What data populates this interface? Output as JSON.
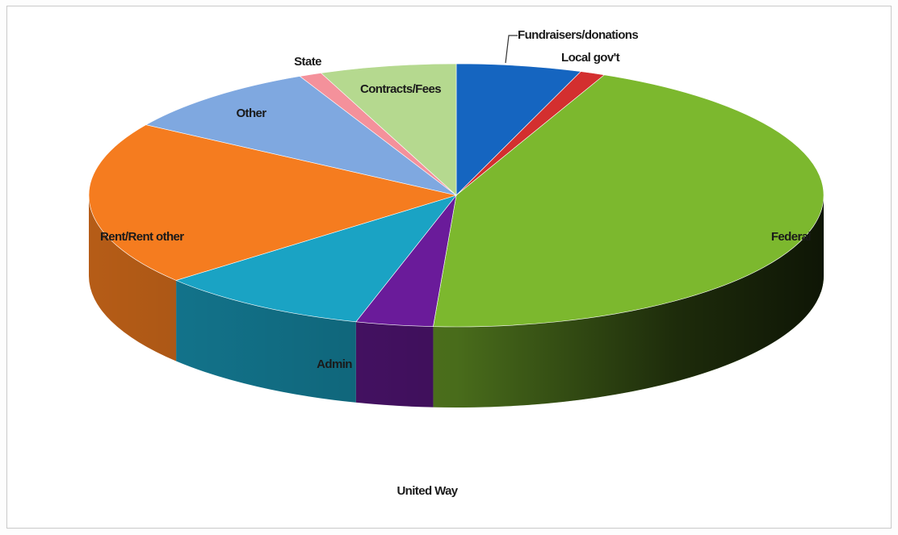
{
  "chart_data": {
    "type": "pie",
    "title": "",
    "slices": [
      {
        "label": "Fundraisers/donations",
        "value": 5.5,
        "color": "#1565c0"
      },
      {
        "label": "Local gov't",
        "value": 1.1,
        "color": "#d32f2f"
      },
      {
        "label": "Federal",
        "value": 44.4,
        "color": "#7cb82e"
      },
      {
        "label": "United Way",
        "value": 3.4,
        "color": "#6a1b9a"
      },
      {
        "label": "Admin",
        "value": 9.4,
        "color": "#1aa3c4"
      },
      {
        "label": "Rent/Rent other",
        "value": 20.2,
        "color": "#f57c1f"
      },
      {
        "label": "Other",
        "value": 9.0,
        "color": "#7fa8e0"
      },
      {
        "label": "State",
        "value": 1.0,
        "color": "#f4919b"
      },
      {
        "label": "Contracts/Fees",
        "value": 6.0,
        "color": "#b5d98f"
      }
    ],
    "style": "3d-pie",
    "legend": "none"
  }
}
